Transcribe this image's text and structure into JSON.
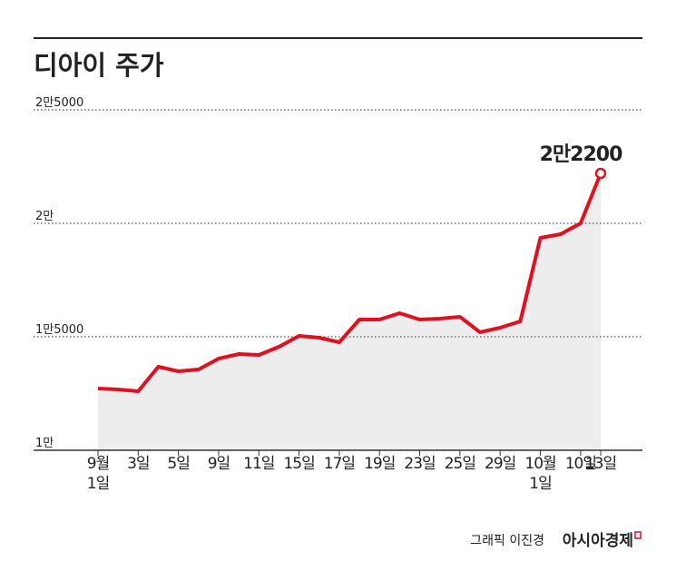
{
  "chart_data": {
    "type": "line",
    "title": "디아이 주가",
    "categories": [
      "9월\n1일",
      null,
      "3일",
      null,
      "5일",
      null,
      "9일",
      null,
      "11일",
      null,
      "15일",
      null,
      "17일",
      null,
      "19일",
      null,
      "23일",
      null,
      "25일",
      null,
      "29일",
      null,
      "10월\n1일",
      null,
      "10일",
      "13일"
    ],
    "series": [
      {
        "color": "#e2101f",
        "values": [
          12720,
          12680,
          12600,
          13680,
          13480,
          13560,
          14040,
          14240,
          14200,
          14560,
          15040,
          14960,
          14760,
          15760,
          15760,
          16040,
          15760,
          15800,
          15880,
          15200,
          15400,
          15680,
          19360,
          19520,
          20000,
          22200
        ],
        "value_labels": [
          null,
          null,
          null,
          null,
          null,
          null,
          null,
          null,
          null,
          null,
          null,
          null,
          null,
          null,
          null,
          null,
          null,
          null,
          null,
          null,
          null,
          null,
          null,
          null,
          null,
          "2만2200"
        ]
      }
    ],
    "ylim": [
      10000,
      25000
    ],
    "yticks": [
      {
        "value": 10000,
        "label": "1만"
      },
      {
        "value": 15000,
        "label": "1만5000"
      },
      {
        "value": 20000,
        "label": "2만"
      },
      {
        "value": 25000,
        "label": "2만5000"
      }
    ],
    "grid": true,
    "area_color": "#ededed",
    "credit": "그래픽 이진경",
    "source": "아시아경제"
  }
}
